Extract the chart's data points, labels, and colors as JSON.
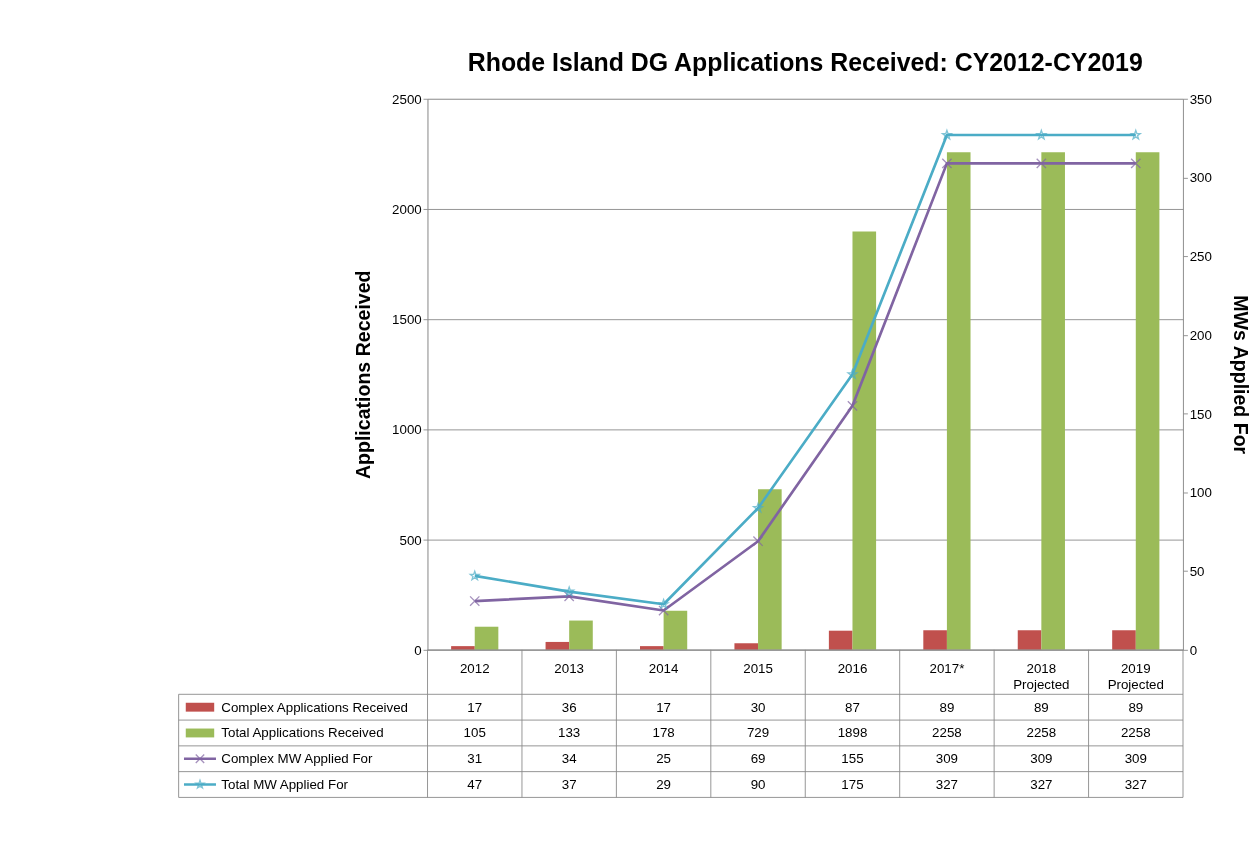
{
  "chart_data": {
    "type": "bar",
    "title": "Rhode Island DG Applications Received:  CY2012-CY2019",
    "ylabel": "Applications Received",
    "y2label": "MWs Applied For",
    "categories": [
      "2012",
      "2013",
      "2014",
      "2015",
      "2016",
      "2017*",
      "2018 Projected",
      "2019 Projected"
    ],
    "series": [
      {
        "name": "Complex Applications Received",
        "color": "#c0504d",
        "values": [
          17,
          36,
          17,
          30,
          87,
          89,
          89,
          89
        ]
      },
      {
        "name": "Total Applications Received",
        "color": "#9bbb59",
        "values": [
          105,
          133,
          178,
          729,
          1898,
          2258,
          2258,
          2258
        ]
      },
      {
        "name": "Complex MW Applied For",
        "type": "line",
        "axis": "y2",
        "marker": "cross",
        "color": "#8064a2",
        "values": [
          31,
          34,
          25,
          69,
          155,
          309,
          309,
          309
        ]
      },
      {
        "name": "Total MW Applied For",
        "type": "line",
        "axis": "y2",
        "marker": "star",
        "color": "#4bacc6",
        "values": [
          47,
          37,
          29,
          90,
          175,
          327,
          327,
          327
        ]
      }
    ],
    "ylim": [
      0,
      2500
    ],
    "yticks": [
      0,
      500,
      1000,
      1500,
      2000,
      2500
    ],
    "y2lim": [
      0,
      350
    ],
    "y2ticks": [
      0,
      50,
      100,
      150,
      200,
      250,
      300,
      350
    ],
    "grid": "y",
    "legend": "bottom",
    "data_labels": true
  }
}
